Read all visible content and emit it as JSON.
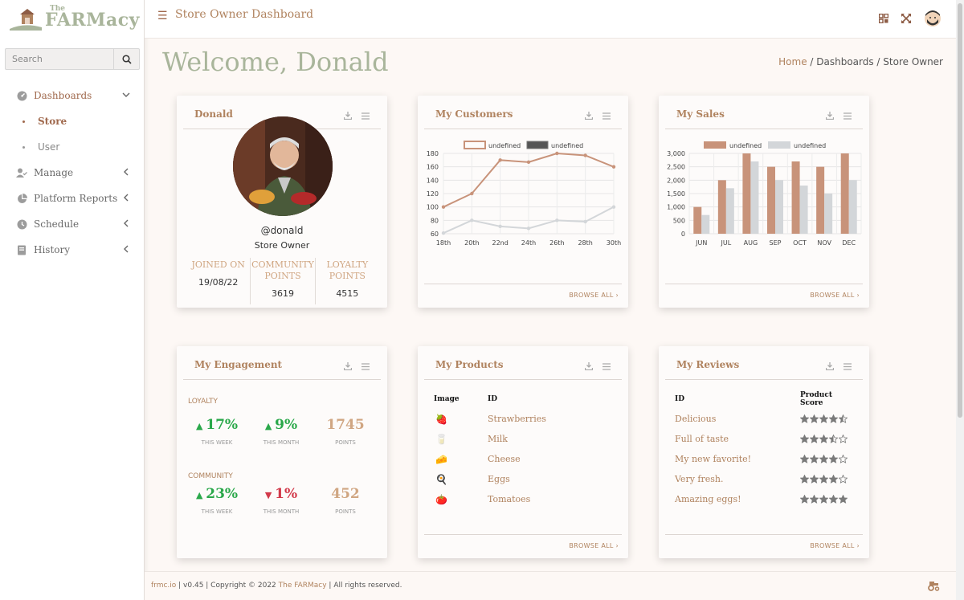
{
  "app": {
    "logo_the": "The",
    "logo_name": "FARMacy",
    "header_title": "Store Owner Dashboard"
  },
  "search": {
    "placeholder": "Search"
  },
  "sidebar": {
    "items": [
      {
        "label": "Dashboards",
        "icon": "dashboard-icon",
        "expanded": true
      },
      {
        "label": "Store",
        "sub": true,
        "active": true
      },
      {
        "label": "User",
        "sub": true
      },
      {
        "label": "Manage",
        "icon": "user-check-icon"
      },
      {
        "label": "Platform Reports",
        "icon": "pie-chart-icon"
      },
      {
        "label": "Schedule",
        "icon": "clock-icon"
      },
      {
        "label": "History",
        "icon": "book-icon"
      }
    ]
  },
  "welcome": "Welcome, Donald",
  "breadcrumb": {
    "home": "Home",
    "sep1": " / ",
    "dashboards": "Dashboards",
    "sep2": " / ",
    "current": "Store Owner"
  },
  "profile": {
    "title": "Donald",
    "handle": "@donald",
    "role": "Store Owner",
    "stats": [
      {
        "label": "JOINED ON",
        "value": "19/08/22"
      },
      {
        "label": "COMMUNITY POINTS",
        "value": "3619"
      },
      {
        "label": "LOYALTY POINTS",
        "value": "4515"
      }
    ]
  },
  "customers": {
    "title": "My Customers",
    "browse": "BROWSE ALL ›",
    "chart_data": {
      "type": "line",
      "x": [
        "18th",
        "20th",
        "22nd",
        "24th",
        "26th",
        "28th",
        "30th"
      ],
      "series": [
        {
          "name": "undefined",
          "values": [
            100,
            120,
            170,
            167,
            180,
            177,
            160
          ],
          "color": "#c8937a"
        },
        {
          "name": "undefined",
          "values": [
            61,
            80,
            71,
            68,
            80,
            78,
            100
          ],
          "color": "#d3d6d9"
        }
      ],
      "ylim": [
        60,
        180
      ],
      "yticks": [
        60,
        80,
        100,
        120,
        140,
        160,
        180
      ],
      "legend": "top",
      "grid": true
    }
  },
  "sales": {
    "title": "My Sales",
    "browse": "BROWSE ALL ›",
    "chart_data": {
      "type": "bar",
      "categories": [
        "JUN",
        "JUL",
        "AUG",
        "SEP",
        "OCT",
        "NOV",
        "DEC"
      ],
      "series": [
        {
          "name": "undefined",
          "values": [
            1000,
            2000,
            3000,
            2500,
            2700,
            2500,
            3000
          ],
          "color": "#c8937a"
        },
        {
          "name": "undefined",
          "values": [
            700,
            1700,
            2700,
            2000,
            1800,
            1500,
            2000
          ],
          "color": "#d3d6d9"
        }
      ],
      "ylim": [
        0,
        3000
      ],
      "yticks": [
        "0",
        "500",
        "1,000",
        "1,500",
        "2,000",
        "2,500",
        "3,000"
      ],
      "legend": "top",
      "grid": true
    }
  },
  "engagement": {
    "title": "My Engagement",
    "groups": [
      {
        "label": "LOYALTY",
        "cells": [
          {
            "value": "17%",
            "label": "THIS WEEK",
            "trend": "up"
          },
          {
            "value": "9%",
            "label": "THIS MONTH",
            "trend": "up"
          },
          {
            "value": "1745",
            "label": "POINTS",
            "trend": "neutral"
          }
        ]
      },
      {
        "label": "COMMUNITY",
        "cells": [
          {
            "value": "23%",
            "label": "THIS WEEK",
            "trend": "up"
          },
          {
            "value": "1%",
            "label": "THIS MONTH",
            "trend": "down"
          },
          {
            "value": "452",
            "label": "POINTS",
            "trend": "neutral"
          }
        ]
      }
    ]
  },
  "products": {
    "title": "My Products",
    "browse": "BROWSE ALL ›",
    "col_image": "Image",
    "col_id": "ID",
    "rows": [
      {
        "icon": "🍓",
        "name": "Strawberries"
      },
      {
        "icon": "🥛",
        "name": "Milk"
      },
      {
        "icon": "🧀",
        "name": "Cheese"
      },
      {
        "icon": "🍳",
        "name": "Eggs"
      },
      {
        "icon": "🍅",
        "name": "Tomatoes"
      }
    ]
  },
  "reviews": {
    "title": "My Reviews",
    "browse": "BROWSE ALL ›",
    "col_id": "ID",
    "col_score": "Product Score",
    "rows": [
      {
        "name": "Delicious",
        "score": 4.5
      },
      {
        "name": "Full of taste",
        "score": 3.5
      },
      {
        "name": "My new favorite!",
        "score": 4
      },
      {
        "name": "Very fresh.",
        "score": 4
      },
      {
        "name": "Amazing eggs!",
        "score": 5
      }
    ]
  },
  "footer": {
    "site": "frmc.io",
    "version": " | v0.45 | Copyright © 2022 ",
    "brand": "The FARMacy",
    "rights": " | All rights reserved."
  },
  "colors": {
    "accent": "#b0835f",
    "green_text": "#a9b59b",
    "up": "#2aa84a",
    "down": "#d2394a"
  }
}
